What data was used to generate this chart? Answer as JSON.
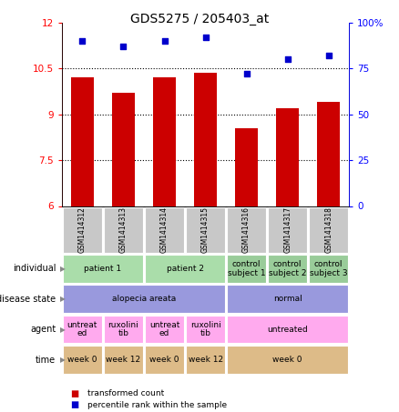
{
  "title": "GDS5275 / 205403_at",
  "samples": [
    "GSM1414312",
    "GSM1414313",
    "GSM1414314",
    "GSM1414315",
    "GSM1414316",
    "GSM1414317",
    "GSM1414318"
  ],
  "bar_values": [
    10.2,
    9.7,
    10.2,
    10.35,
    8.55,
    9.2,
    9.4
  ],
  "dot_values": [
    90,
    87,
    90,
    92,
    72,
    80,
    82
  ],
  "ylim_left": [
    6,
    12
  ],
  "ylim_right": [
    0,
    100
  ],
  "yticks_left": [
    6,
    7.5,
    9,
    10.5,
    12
  ],
  "yticks_right": [
    0,
    25,
    50,
    75,
    100
  ],
  "ytick_left_labels": [
    "6",
    "7.5",
    "9",
    "10.5",
    "12"
  ],
  "ytick_right_labels": [
    "0",
    "25",
    "50",
    "75",
    "100%"
  ],
  "bar_color": "#cc0000",
  "dot_color": "#0000cc",
  "sample_bg": "#c8c8c8",
  "individual_groups": [
    {
      "text": "patient 1",
      "start": 0,
      "end": 2,
      "color": "#aaddaa"
    },
    {
      "text": "patient 2",
      "start": 2,
      "end": 4,
      "color": "#aaddaa"
    },
    {
      "text": "control\nsubject 1",
      "start": 4,
      "end": 5,
      "color": "#99cc99"
    },
    {
      "text": "control\nsubject 2",
      "start": 5,
      "end": 6,
      "color": "#99cc99"
    },
    {
      "text": "control\nsubject 3",
      "start": 6,
      "end": 7,
      "color": "#99cc99"
    }
  ],
  "disease_groups": [
    {
      "text": "alopecia areata",
      "start": 0,
      "end": 4,
      "color": "#9999dd"
    },
    {
      "text": "normal",
      "start": 4,
      "end": 7,
      "color": "#9999dd"
    }
  ],
  "agent_groups": [
    {
      "text": "untreat\ned",
      "start": 0,
      "end": 1,
      "color": "#ffaaee"
    },
    {
      "text": "ruxolini\ntib",
      "start": 1,
      "end": 2,
      "color": "#ffaaee"
    },
    {
      "text": "untreat\ned",
      "start": 2,
      "end": 3,
      "color": "#ffaaee"
    },
    {
      "text": "ruxolini\ntib",
      "start": 3,
      "end": 4,
      "color": "#ffaaee"
    },
    {
      "text": "untreated",
      "start": 4,
      "end": 7,
      "color": "#ffaaee"
    }
  ],
  "time_groups": [
    {
      "text": "week 0",
      "start": 0,
      "end": 1,
      "color": "#ddbb88"
    },
    {
      "text": "week 12",
      "start": 1,
      "end": 2,
      "color": "#ddbb88"
    },
    {
      "text": "week 0",
      "start": 2,
      "end": 3,
      "color": "#ddbb88"
    },
    {
      "text": "week 12",
      "start": 3,
      "end": 4,
      "color": "#ddbb88"
    },
    {
      "text": "week 0",
      "start": 4,
      "end": 7,
      "color": "#ddbb88"
    }
  ],
  "row_labels": [
    "individual",
    "disease state",
    "agent",
    "time"
  ],
  "legend": [
    {
      "color": "#cc0000",
      "marker": "s",
      "label": "transformed count"
    },
    {
      "color": "#0000cc",
      "marker": "s",
      "label": "percentile rank within the sample"
    }
  ]
}
